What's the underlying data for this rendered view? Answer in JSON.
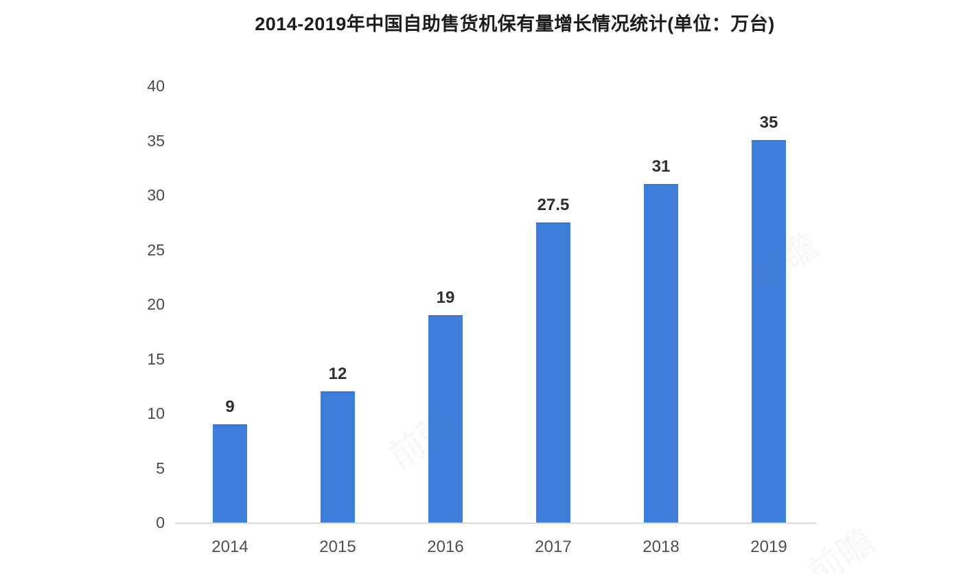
{
  "chart_data": {
    "type": "bar",
    "title": "2014-2019年中国自助售货机保有量增长情况统计(单位：万台)",
    "categories": [
      "2014",
      "2015",
      "2016",
      "2017",
      "2018",
      "2019"
    ],
    "values": [
      9,
      12,
      19,
      27.5,
      31,
      35
    ],
    "value_labels": [
      "9",
      "12",
      "19",
      "27.5",
      "31",
      "35"
    ],
    "xlabel": "",
    "ylabel": "",
    "ylim": [
      0,
      40
    ],
    "yticks": [
      0,
      5,
      10,
      15,
      20,
      25,
      30,
      35,
      40
    ],
    "grid": false,
    "legend_position": "none",
    "bar_color": "#3E7EDA",
    "axis_line_color": "#d9d9d9",
    "title_color": "#1c1c1c",
    "tick_label_color": "#4a4a4a",
    "value_label_color": "#2e2e2e"
  },
  "watermark": {
    "text": "前瞻"
  }
}
